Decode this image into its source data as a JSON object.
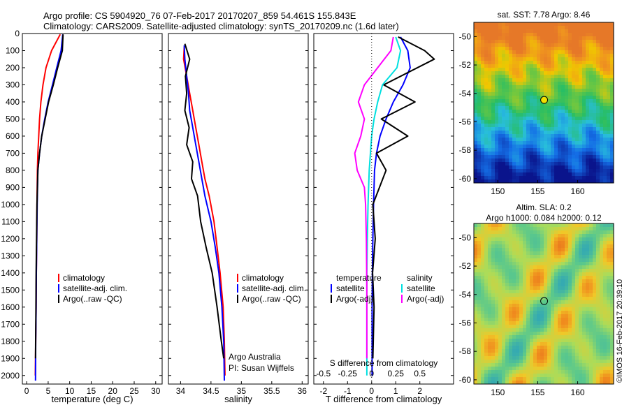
{
  "header": {
    "title_line1": "Argo profile: CS 5904920_76 07-Feb-2017 20170207_859 54.461S 155.843E",
    "title_line2": "Climatology: CARS2009. Satellite-adjusted climatology: synTS_20170209.nc (1.6d later)"
  },
  "colors": {
    "climatology": "#ff0000",
    "satellite": "#0000ff",
    "argo": "#000000",
    "sat_salinity": "#00e0e0",
    "argo_adj_salinity": "#ff00ff"
  },
  "depth_axis": {
    "ticks": [
      "0",
      "100",
      "200",
      "300",
      "400",
      "500",
      "600",
      "700",
      "800",
      "900",
      "1000",
      "1100",
      "1200",
      "1300",
      "1400",
      "1500",
      "1600",
      "1700",
      "1800",
      "1900",
      "2000"
    ],
    "ylim": [
      0,
      2050
    ]
  },
  "chart_data": [
    {
      "type": "line",
      "id": "temperature",
      "xlabel": "temperature (deg C)",
      "xlim": [
        -1,
        31.5
      ],
      "xticks": [
        "0",
        "5",
        "10",
        "15",
        "20",
        "25",
        "30"
      ],
      "legend": [
        "climatology",
        "satellite-adj. clim.",
        "Argo(..raw -QC)"
      ],
      "series": [
        {
          "name": "climatology",
          "color_key": "climatology",
          "x": [
            7.8,
            5.8,
            4.5,
            3.8,
            3.3,
            3.0,
            2.8,
            2.6,
            2.5,
            2.4,
            2.35,
            2.25,
            2.2,
            2.1,
            2.0
          ],
          "y": [
            5,
            100,
            200,
            300,
            400,
            500,
            600,
            700,
            800,
            1000,
            1200,
            1400,
            1600,
            1800,
            2000
          ]
        },
        {
          "name": "satellite-adj. clim.",
          "color_key": "satellite",
          "x": [
            8.4,
            8.0,
            7.0,
            6.0,
            5.0,
            4.2,
            3.5,
            3.0,
            2.6,
            2.45,
            2.35,
            2.25,
            2.2,
            2.1,
            2.05
          ],
          "y": [
            5,
            100,
            200,
            300,
            400,
            500,
            600,
            700,
            800,
            1000,
            1200,
            1400,
            1600,
            1800,
            2030
          ]
        },
        {
          "name": "Argo(..raw -QC)",
          "color_key": "argo",
          "x": [
            8.46,
            8.3,
            7.2,
            6.2,
            5.1,
            4.3,
            3.5,
            3.0,
            2.6,
            2.4,
            2.3,
            2.2,
            2.15,
            2.05
          ],
          "y": [
            5,
            100,
            200,
            300,
            400,
            500,
            600,
            700,
            800,
            1000,
            1200,
            1400,
            1600,
            1900
          ]
        }
      ]
    },
    {
      "type": "line",
      "id": "salinity",
      "xlabel": "salinity",
      "xlim": [
        33.8,
        36.1
      ],
      "xticks": [
        "34",
        "34.5",
        "35",
        "35.5",
        "36"
      ],
      "legend": [
        "climatology",
        "satellite-adj. clim.",
        "Argo(..raw -QC)"
      ],
      "annotation_line1": "Argo Australia",
      "annotation_line2": "PI: Susan Wijffels",
      "series": [
        {
          "name": "climatology",
          "color_key": "climatology",
          "x": [
            34.06,
            34.05,
            34.1,
            34.15,
            34.2,
            34.25,
            34.3,
            34.35,
            34.4,
            34.47,
            34.55,
            34.6,
            34.65,
            34.7,
            34.72,
            34.73
          ],
          "y": [
            80,
            150,
            250,
            350,
            450,
            550,
            650,
            750,
            850,
            950,
            1100,
            1250,
            1400,
            1600,
            1800,
            2000
          ]
        },
        {
          "name": "satellite-adj. clim.",
          "color_key": "satellite",
          "x": [
            34.06,
            34.07,
            34.1,
            34.13,
            34.15,
            34.2,
            34.25,
            34.3,
            34.35,
            34.4,
            34.5,
            34.57,
            34.63,
            34.68,
            34.71,
            34.72
          ],
          "y": [
            70,
            150,
            250,
            350,
            450,
            550,
            650,
            750,
            850,
            950,
            1100,
            1250,
            1400,
            1600,
            1800,
            2030
          ]
        },
        {
          "name": "Argo(..raw -QC)",
          "color_key": "argo",
          "x": [
            34.07,
            34.15,
            34.08,
            34.1,
            34.07,
            34.14,
            34.1,
            34.2,
            34.18,
            34.28,
            34.33,
            34.42,
            34.52,
            34.6,
            34.67,
            34.71
          ],
          "y": [
            60,
            150,
            250,
            350,
            450,
            550,
            650,
            750,
            850,
            950,
            1100,
            1250,
            1400,
            1600,
            1800,
            1900
          ]
        }
      ]
    },
    {
      "type": "line",
      "id": "difference",
      "xlabel": "T difference from climatology",
      "xlabel_top": "S difference from climatology",
      "xlim": [
        -2.4,
        3.4
      ],
      "xticks": [
        "-2",
        "-1",
        "0",
        "1",
        "2"
      ],
      "xticks_top": [
        "-0.5",
        "-0.25",
        "0",
        "0.25",
        "0.5"
      ],
      "legend_temperature_title": "temperature",
      "legend_salinity_title": "salinity",
      "legend_temperature": [
        "satellite",
        "Argo(-adj)"
      ],
      "legend_salinity": [
        "satellite",
        "Argo(-adj)"
      ],
      "series": [
        {
          "name": "temperature satellite",
          "color_key": "satellite",
          "x": [
            1.2,
            1.5,
            1.6,
            1.3,
            0.9,
            0.6,
            0.35,
            0.2,
            0.12,
            0.08,
            0.05,
            0.03,
            0.02,
            0.02,
            0.02
          ],
          "y": [
            20,
            100,
            200,
            300,
            400,
            500,
            600,
            700,
            800,
            1000,
            1200,
            1400,
            1600,
            1800,
            2000
          ]
        },
        {
          "name": "temperature Argo(-adj)",
          "color_key": "argo",
          "x": [
            1.1,
            2.2,
            2.6,
            0.5,
            1.8,
            0.4,
            1.5,
            0.2,
            0.6,
            0.05,
            0.15,
            0.04,
            0.1,
            0.05
          ],
          "y": [
            20,
            100,
            150,
            300,
            400,
            500,
            600,
            700,
            800,
            1000,
            1200,
            1400,
            1600,
            1900
          ]
        },
        {
          "name": "salinity satellite",
          "color_key": "sat_salinity",
          "x": [
            1.0,
            1.2,
            1.05,
            0.45,
            0.25,
            0.1,
            0.0,
            -0.05,
            -0.1,
            -0.15,
            -0.18,
            -0.2,
            -0.2,
            -0.2
          ],
          "y": [
            20,
            100,
            200,
            300,
            400,
            500,
            600,
            700,
            800,
            1000,
            1200,
            1400,
            1600,
            2000
          ]
        },
        {
          "name": "salinity Argo(-adj)",
          "color_key": "argo_adj_salinity",
          "x": [
            0.9,
            0.8,
            -0.3,
            -0.55,
            -0.3,
            -0.45,
            -0.7,
            -0.6,
            -0.3,
            -0.25,
            -0.22,
            -0.2,
            -0.2
          ],
          "y": [
            20,
            100,
            300,
            400,
            500,
            600,
            700,
            800,
            900,
            1000,
            1200,
            1500,
            1900
          ]
        }
      ]
    }
  ],
  "maps": {
    "sst": {
      "title": "sat. SST: 7.78 Argo: 8.46",
      "yticks": [
        "-50",
        "-52",
        "-54",
        "-56",
        "-58",
        "-60"
      ],
      "xticks": [
        "150",
        "155",
        "160"
      ],
      "float_lon": 155.8,
      "float_lat": -54.46
    },
    "sla": {
      "title_line1": "Altim. SLA: 0.2",
      "title_line2": "Argo h1000: 0.084 h2000: 0.12",
      "yticks": [
        "-50",
        "-52",
        "-54",
        "-56",
        "-58",
        "-60"
      ],
      "xticks": [
        "150",
        "155",
        "160"
      ],
      "float_lon": 155.8,
      "float_lat": -54.46
    },
    "credit": "©IMOS 16-Feb-2017 20:39:10"
  }
}
